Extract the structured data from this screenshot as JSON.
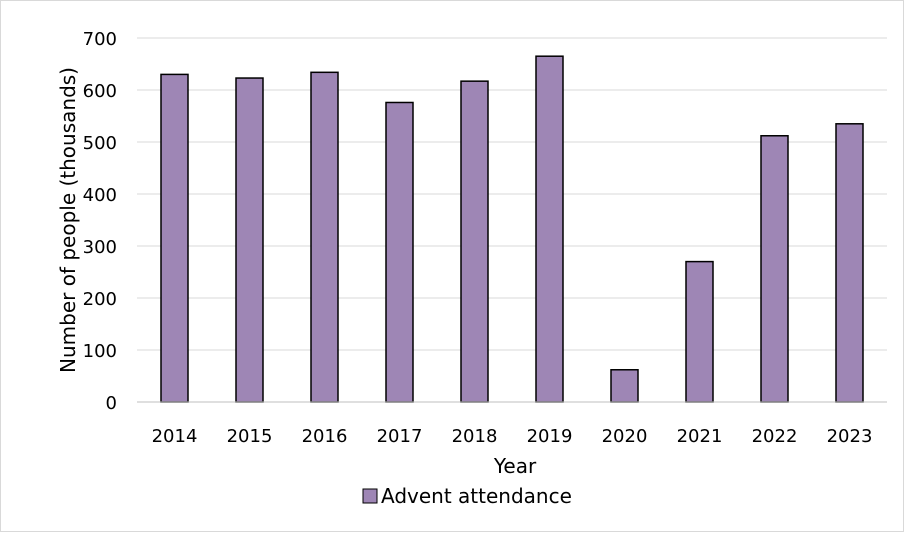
{
  "chart_data": {
    "type": "bar",
    "title": "",
    "xlabel": "Year",
    "ylabel": "Number of people (thousands)",
    "categories": [
      "2014",
      "2015",
      "2016",
      "2017",
      "2018",
      "2019",
      "2020",
      "2021",
      "2022",
      "2023"
    ],
    "series": [
      {
        "name": "Advent attendance",
        "values": [
          630,
          623,
          634,
          576,
          617,
          665,
          62,
          270,
          512,
          535
        ],
        "color": "#9e86b5"
      }
    ],
    "ylim": [
      0,
      700
    ],
    "yticks": [
      "0",
      "100",
      "200",
      "300",
      "400",
      "500",
      "600",
      "700"
    ],
    "grid": true,
    "legend_position": "bottom"
  }
}
